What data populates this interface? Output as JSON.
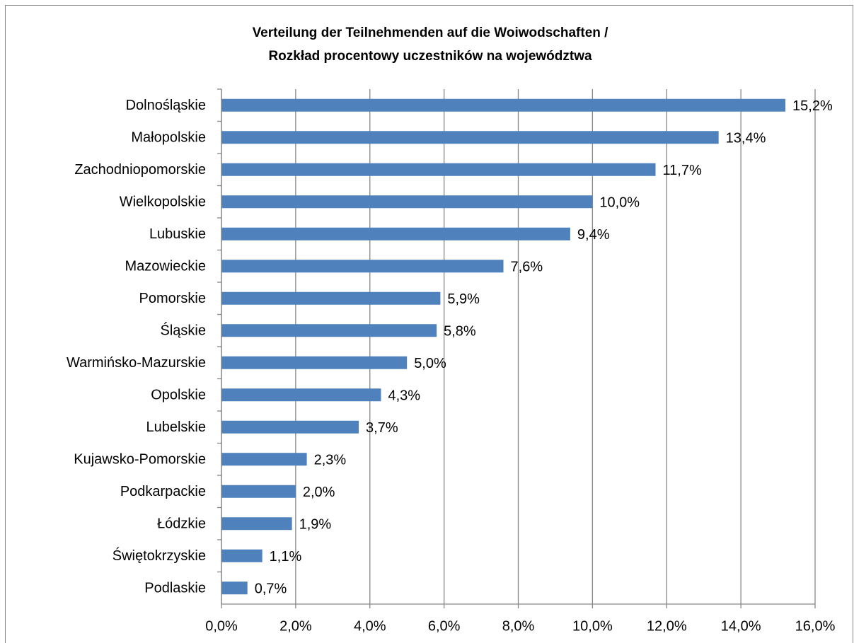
{
  "chart_data": {
    "type": "bar",
    "orientation": "horizontal",
    "title": [
      "Verteilung der Teilnehmenden auf die Woiwodschaften /",
      "Rozkład procentowy uczestników na województwa"
    ],
    "categories": [
      "Dolnośląskie",
      "Małopolskie",
      "Zachodniopomorskie",
      "Wielkopolskie",
      "Lubuskie",
      "Mazowieckie",
      "Pomorskie",
      "Śląskie",
      "Warmińsko-Mazurskie",
      "Opolskie",
      "Lubelskie",
      "Kujawsko-Pomorskie",
      "Podkarpackie",
      "Łódzkie",
      "Świętokrzyskie",
      "Podlaskie"
    ],
    "values": [
      15.2,
      13.4,
      11.7,
      10.0,
      9.4,
      7.6,
      5.9,
      5.8,
      5.0,
      4.3,
      3.7,
      2.3,
      2.0,
      1.9,
      1.1,
      0.7
    ],
    "value_labels": [
      "15,2%",
      "13,4%",
      "11,7%",
      "10,0%",
      "9,4%",
      "7,6%",
      "5,9%",
      "5,8%",
      "5,0%",
      "4,3%",
      "3,7%",
      "2,3%",
      "2,0%",
      "1,9%",
      "1,1%",
      "0,7%"
    ],
    "color": "#4f81bd",
    "xlim": [
      0,
      16
    ],
    "xticks": [
      {
        "value": 0,
        "label": "0,0%"
      },
      {
        "value": 2,
        "label": "2,0%"
      },
      {
        "value": 4,
        "label": "4,0%"
      },
      {
        "value": 6,
        "label": "6,0%"
      },
      {
        "value": 8,
        "label": "8,0%"
      },
      {
        "value": 10,
        "label": "10,0%"
      },
      {
        "value": 12,
        "label": "12,0%"
      },
      {
        "value": 14,
        "label": "14,0%"
      },
      {
        "value": 16,
        "label": "16,0%"
      }
    ],
    "grid": true
  }
}
